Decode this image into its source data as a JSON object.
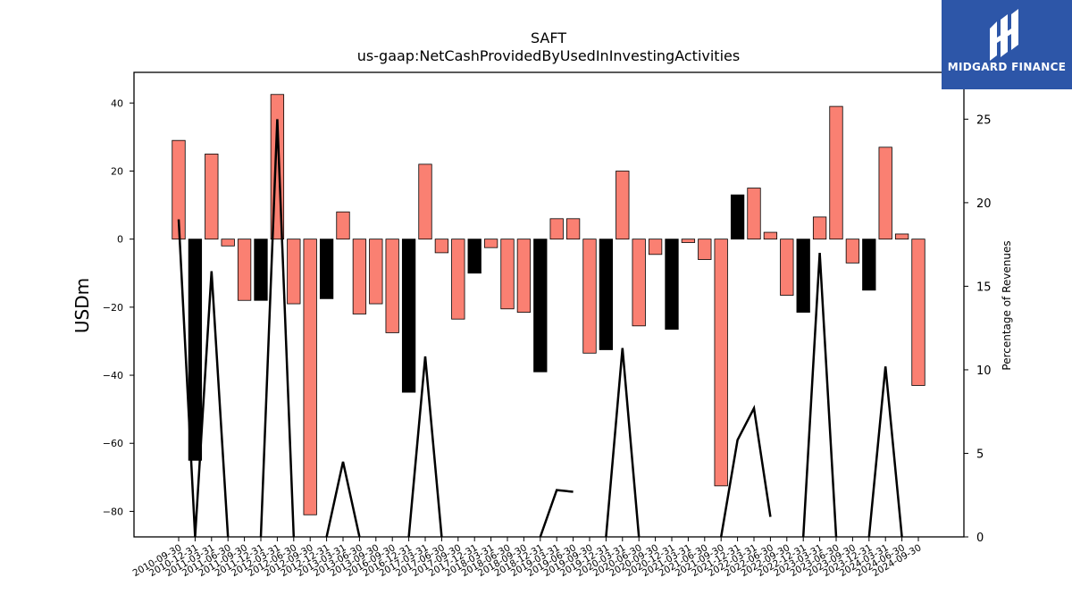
{
  "chart_data": {
    "type": "bar",
    "title": "SAFT",
    "subtitle": "us-gaap:NetCashProvidedByUsedInInvestingActivities",
    "ylabel": "USDm",
    "y2label": "Percentage of Revenues",
    "ylim": [
      -87.5,
      49
    ],
    "y2lim": [
      0,
      27.8
    ],
    "yticks": [
      40,
      20,
      0,
      -20,
      -40,
      -60,
      -80
    ],
    "y2ticks": [
      0,
      5,
      10,
      15,
      20,
      25
    ],
    "colors": {
      "positive": "#fa8072",
      "negative_highlight": "#000000",
      "edge": "#000000",
      "line": "#000000"
    },
    "categories": [
      "2010-09-30",
      "2010-12-31",
      "2011-03-31",
      "2011-06-30",
      "2011-09-30",
      "2011-12-31",
      "2012-03-31",
      "2012-06-30",
      "2012-09-30",
      "2012-12-31",
      "2013-03-31",
      "2013-06-30",
      "2013-09-30",
      "2016-09-30",
      "2016-12-31",
      "2017-03-31",
      "2017-06-30",
      "2017-09-30",
      "2017-12-31",
      "2018-03-31",
      "2018-06-30",
      "2018-09-30",
      "2018-12-31",
      "2019-03-31",
      "2019-06-30",
      "2019-09-30",
      "2019-12-31",
      "2020-03-31",
      "2020-06-30",
      "2020-09-30",
      "2020-12-31",
      "2021-03-31",
      "2021-06-30",
      "2021-09-30",
      "2021-12-31",
      "2022-03-31",
      "2022-06-30",
      "2022-09-30",
      "2022-12-31",
      "2023-03-31",
      "2023-06-30",
      "2023-09-30",
      "2023-12-31",
      "2024-03-31",
      "2024-06-30",
      "2024-09-30"
    ],
    "series": [
      {
        "kind": "bar",
        "values": [
          29,
          -65,
          25,
          -2,
          -18,
          -18,
          42.5,
          -19,
          -81,
          -17.5,
          8,
          -22,
          -19,
          -27.5,
          -45,
          22,
          -4,
          -23.5,
          -10,
          -2.5,
          -20.5,
          -21.5,
          -39,
          6,
          6,
          -33.5,
          -32.5,
          20,
          -25.5,
          -4.5,
          -26.5,
          -1,
          -6,
          -72.5,
          13,
          15,
          2,
          -16.5,
          -21.5,
          6.5,
          39,
          -7,
          -15,
          27,
          1.5,
          -43
        ],
        "highlight": [
          false,
          true,
          false,
          false,
          false,
          true,
          false,
          false,
          false,
          true,
          false,
          false,
          false,
          false,
          true,
          false,
          false,
          false,
          true,
          false,
          false,
          false,
          true,
          false,
          false,
          false,
          true,
          false,
          false,
          false,
          true,
          false,
          false,
          false,
          true,
          false,
          false,
          false,
          true,
          false,
          false,
          false,
          true,
          false,
          false,
          false
        ]
      },
      {
        "kind": "line",
        "axis": "right",
        "values": [
          19,
          0,
          15.9,
          0,
          null,
          0,
          25,
          0,
          null,
          0,
          4.5,
          0,
          null,
          null,
          0,
          10.8,
          0,
          null,
          null,
          null,
          null,
          null,
          0,
          2.8,
          2.7,
          null,
          0,
          11.3,
          0,
          null,
          null,
          null,
          null,
          0,
          5.8,
          7.7,
          1.2,
          null,
          0,
          17,
          0,
          null,
          0,
          10.2,
          0,
          null
        ]
      }
    ]
  },
  "logo": {
    "text": "MIDGARD FINANCE"
  }
}
